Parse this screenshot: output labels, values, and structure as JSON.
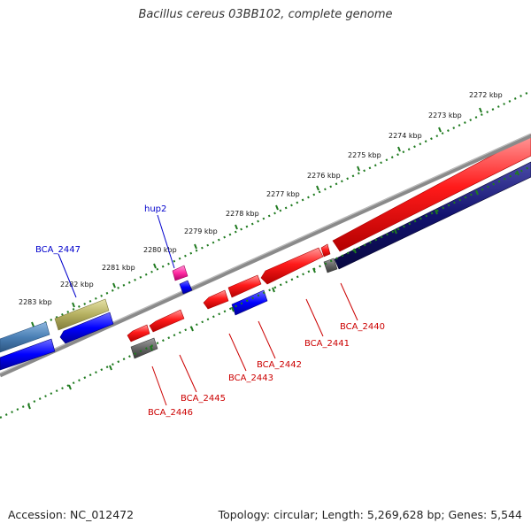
{
  "header": {
    "title": "Bacillus cereus 03BB102, complete genome"
  },
  "footer": {
    "accession": "Accession: NC_012472",
    "summary": "Topology: circular; Length: 5,269,628 bp; Genes: 5,544"
  },
  "ruler": {
    "ticks": [
      "2272 kbp",
      "2273 kbp",
      "2274 kbp",
      "2275 kbp",
      "2276 kbp",
      "2277 kbp",
      "2278 kbp",
      "2279 kbp",
      "2280 kbp",
      "2281 kbp",
      "2282 kbp",
      "2283 kbp"
    ]
  },
  "genes": [
    {
      "name": "hup2",
      "color": "#0000cc"
    },
    {
      "name": "BCA_2447",
      "color": "#0000cc"
    },
    {
      "name": "BCA_2440",
      "color": "#cc0000"
    },
    {
      "name": "BCA_2441",
      "color": "#cc0000"
    },
    {
      "name": "BCA_2442",
      "color": "#cc0000"
    },
    {
      "name": "BCA_2443",
      "color": "#cc0000"
    },
    {
      "name": "BCA_2445",
      "color": "#cc0000"
    },
    {
      "name": "BCA_2446",
      "color": "#cc0000"
    }
  ],
  "colors": {
    "backbone": "#8a8a8a",
    "ruler": "#1f7a1f",
    "forward_cds": "#ff0000",
    "reverse_cds": "#0000ff",
    "dark_cds": "#1a1a80",
    "olive_cds": "#b5b060",
    "steel_cds": "#4a7fb5",
    "magenta_cds": "#ff33aa",
    "gray_cds": "#666666"
  }
}
